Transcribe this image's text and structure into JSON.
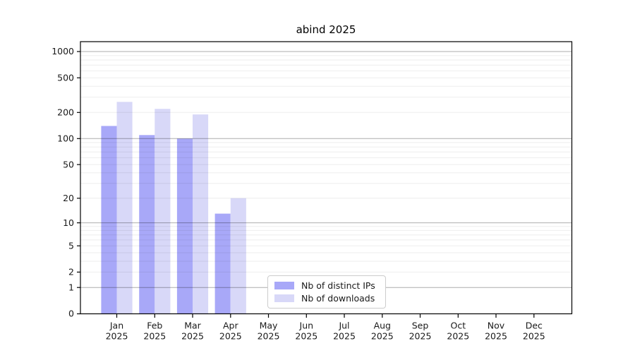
{
  "chart_data": {
    "type": "bar",
    "title": "abind 2025",
    "categories": [
      "Jan",
      "Feb",
      "Mar",
      "Apr",
      "May",
      "Jun",
      "Jul",
      "Aug",
      "Sep",
      "Oct",
      "Nov",
      "Dec"
    ],
    "category_year": "2025",
    "series": [
      {
        "name": "Nb of distinct IPs",
        "color": "#a8a8f8",
        "values": [
          140,
          110,
          100,
          13,
          0,
          0,
          0,
          0,
          0,
          0,
          0,
          0
        ]
      },
      {
        "name": "Nb of downloads",
        "color": "#d8d8f8",
        "values": [
          265,
          220,
          190,
          20,
          0,
          0,
          0,
          0,
          0,
          0,
          0,
          0
        ]
      }
    ],
    "yscale": "log1p",
    "yticks": [
      0,
      1,
      2,
      5,
      10,
      20,
      50,
      100,
      200,
      500,
      1000
    ],
    "ylim": [
      0,
      1300
    ],
    "xlabel": "",
    "ylabel": "",
    "grid": {
      "show": true,
      "major_values": [
        1,
        10,
        100,
        1000
      ],
      "minor_log_decades": [
        1,
        10,
        100
      ]
    },
    "legend_position": "bottom-center"
  }
}
